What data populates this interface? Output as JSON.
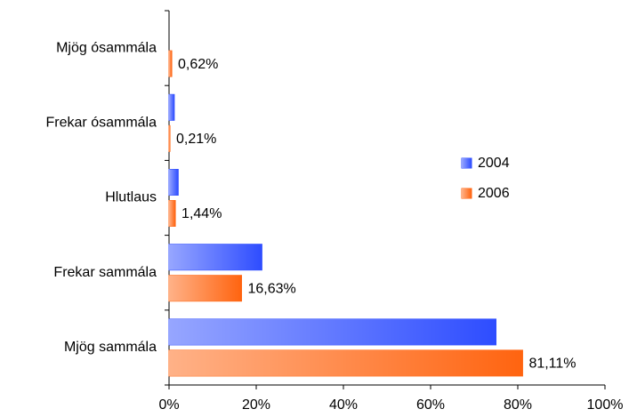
{
  "chart_data": {
    "type": "bar",
    "orientation": "horizontal",
    "categories": [
      "Mjög ósammála",
      "Frekar ósammála",
      "Hlutlaus",
      "Frekar sammála",
      "Mjög sammála"
    ],
    "series": [
      {
        "name": "2004",
        "color": "#2e4dff",
        "values": [
          0,
          1.2,
          2.1,
          21.3,
          75.0
        ]
      },
      {
        "name": "2006",
        "color": "#ff6410",
        "values": [
          0.62,
          0.21,
          1.44,
          16.63,
          81.11
        ],
        "value_labels": [
          "0,62%",
          "0,21%",
          "1,44%",
          "16,63%",
          "81,11%"
        ]
      }
    ],
    "xlim": [
      0,
      100
    ],
    "xticks": [
      {
        "value": 0,
        "label": "0%"
      },
      {
        "value": 20,
        "label": "20%"
      },
      {
        "value": 40,
        "label": "40%"
      },
      {
        "value": 60,
        "label": "60%"
      },
      {
        "value": 80,
        "label": "80%"
      },
      {
        "value": 100,
        "label": "100%"
      }
    ],
    "legend": "right"
  }
}
